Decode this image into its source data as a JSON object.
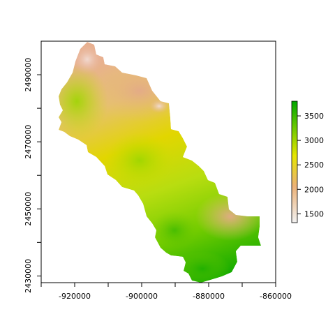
{
  "map": {
    "x_axis": {
      "ticks": [
        -920000,
        -900000,
        -880000,
        -860000
      ],
      "tick_labels": [
        "-920000",
        "-900000",
        "-880000",
        "-860000"
      ],
      "range": [
        -930000,
        -860000
      ]
    },
    "y_axis": {
      "ticks": [
        2430000,
        2450000,
        2470000,
        2490000
      ],
      "tick_labels": [
        "2430000",
        "2450000",
        "2470000",
        "2490000"
      ],
      "range": [
        2428000,
        2500000
      ]
    },
    "colorbar": {
      "ticks": [
        1500,
        2000,
        2500,
        3000,
        3500
      ],
      "tick_labels": [
        "1500",
        "2000",
        "2500",
        "3000",
        "3500"
      ],
      "range": [
        1320,
        3800
      ],
      "colors": [
        "#f2f2f2",
        "#ecb176",
        "#e6e600",
        "#63c600",
        "#00a600"
      ]
    }
  }
}
